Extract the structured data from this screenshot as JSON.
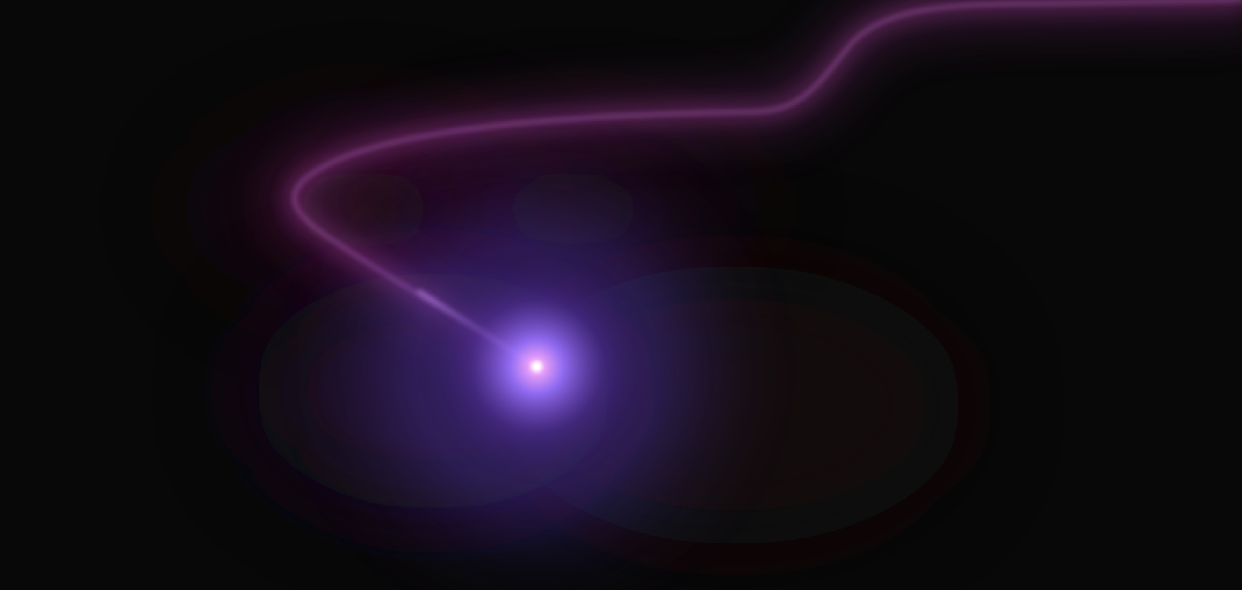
{
  "scene": {
    "background_color": "#080808",
    "trail_outer_color": "#7a2a78",
    "trail_core_color": "#c46fd0",
    "haze_color": "#3a0e24",
    "orb_glow_color": "#7b5cff",
    "orb_core_color": "#ffffff",
    "orb_mid_color": "#f2a6ff"
  }
}
